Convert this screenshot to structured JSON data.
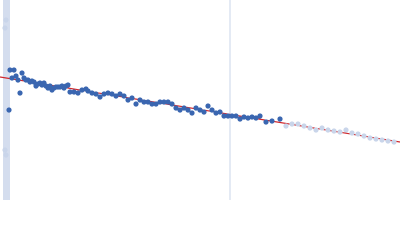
{
  "chart_data": {
    "type": "scatter",
    "xlim": [
      0,
      400
    ],
    "ylim": [
      0,
      200
    ],
    "series": [
      {
        "color": "#3a66b0",
        "x": [
          9,
          10,
          14,
          12,
          16,
          18,
          20,
          22,
          24,
          26,
          28,
          30,
          32,
          34,
          36,
          38,
          40,
          42,
          44,
          46,
          48,
          50,
          52,
          54,
          56,
          58,
          60,
          62,
          64,
          66,
          68,
          70,
          74,
          78,
          82,
          86,
          88,
          92,
          96,
          100,
          104,
          108,
          112,
          116,
          120,
          124,
          128,
          132,
          136,
          140,
          144,
          148,
          152,
          156,
          160,
          164,
          168,
          172,
          176,
          180,
          184,
          188,
          192,
          196,
          200,
          204,
          208,
          212,
          216,
          220,
          224,
          228,
          232,
          236,
          240,
          244,
          248,
          252,
          256,
          260,
          266,
          272,
          280
        ],
        "y": [
          90,
          130,
          130,
          122,
          124,
          120,
          107,
          127,
          122,
          120,
          120,
          118,
          119,
          118,
          114,
          116,
          117,
          115,
          117,
          114,
          112,
          114,
          110,
          112,
          113,
          113,
          113,
          114,
          112,
          114,
          115,
          108,
          108,
          107,
          110,
          111,
          109,
          107,
          106,
          103,
          106,
          107,
          106,
          104,
          106,
          104,
          100,
          102,
          96,
          100,
          98,
          98,
          96,
          96,
          98,
          98,
          98,
          96,
          92,
          90,
          92,
          90,
          87,
          92,
          90,
          88,
          94,
          90,
          87,
          88,
          84,
          84,
          84,
          84,
          81,
          83,
          82,
          83,
          82,
          84,
          78,
          79,
          81
        ]
      },
      {
        "color": "#c9d5ea",
        "x": [
          5,
          6,
          5,
          6,
          286,
          292,
          298,
          304,
          310,
          316,
          322,
          328,
          334,
          340,
          346,
          352,
          358,
          364,
          370,
          376,
          382,
          388,
          394
        ],
        "y": [
          172,
          180,
          50,
          45,
          74,
          76,
          76,
          74,
          72,
          70,
          72,
          70,
          69,
          68,
          70,
          67,
          66,
          64,
          62,
          61,
          60,
          59,
          58
        ]
      },
      {
        "type": "line",
        "color": "#d0262b",
        "x": [
          0,
          400
        ],
        "y": [
          123,
          58
        ]
      }
    ]
  }
}
